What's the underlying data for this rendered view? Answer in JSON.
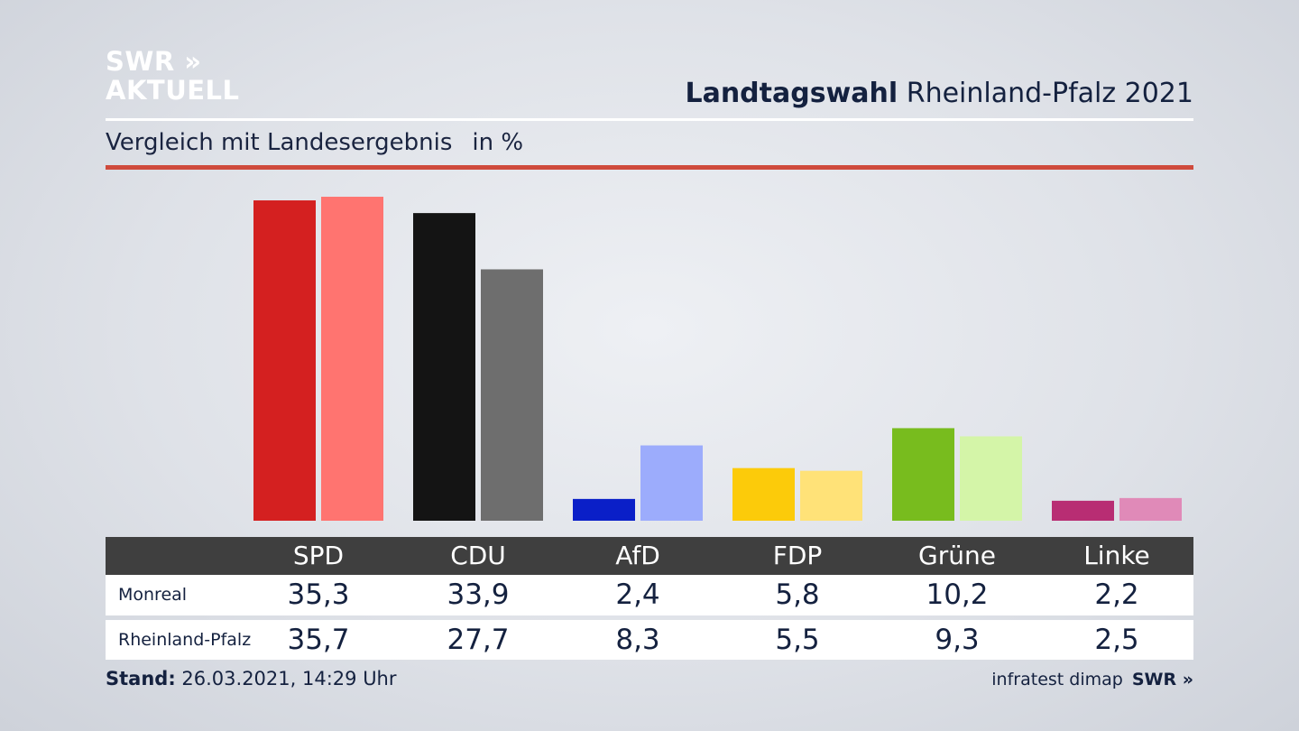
{
  "brand": {
    "line1": "SWR »",
    "line2": "AKTUELL"
  },
  "header": {
    "title_bold": "Landtagswahl",
    "title_rest": "Rheinland-Pfalz 2021"
  },
  "subtitle": {
    "text": "Vergleich mit Landesergebnis",
    "unit": "in %"
  },
  "chart_data": {
    "type": "bar",
    "categories": [
      "SPD",
      "CDU",
      "AfD",
      "FDP",
      "Grüne",
      "Linke"
    ],
    "series": [
      {
        "name": "Monreal",
        "values": [
          35.3,
          33.9,
          2.4,
          5.8,
          10.2,
          2.2
        ],
        "display": [
          "35,3",
          "33,9",
          "2,4",
          "5,8",
          "10,2",
          "2,2"
        ]
      },
      {
        "name": "Rheinland-Pfalz",
        "values": [
          35.7,
          27.7,
          8.3,
          5.5,
          9.3,
          2.5
        ],
        "display": [
          "35,7",
          "27,7",
          "8,3",
          "5,5",
          "9,3",
          "2,5"
        ]
      }
    ],
    "colors": {
      "primary": [
        "#d42020",
        "#141414",
        "#0a1fc8",
        "#fccb0a",
        "#78bc1e",
        "#b82d73"
      ],
      "secondary": [
        "#ff7470",
        "#6e6e6e",
        "#9cacfc",
        "#ffe278",
        "#d4f5a8",
        "#e08ab8"
      ]
    },
    "ylim": [
      0,
      36
    ]
  },
  "footer": {
    "stand_label": "Stand:",
    "stand_value": "26.03.2021, 14:29 Uhr"
  },
  "source": {
    "name": "infratest dimap",
    "brand": "SWR »"
  }
}
